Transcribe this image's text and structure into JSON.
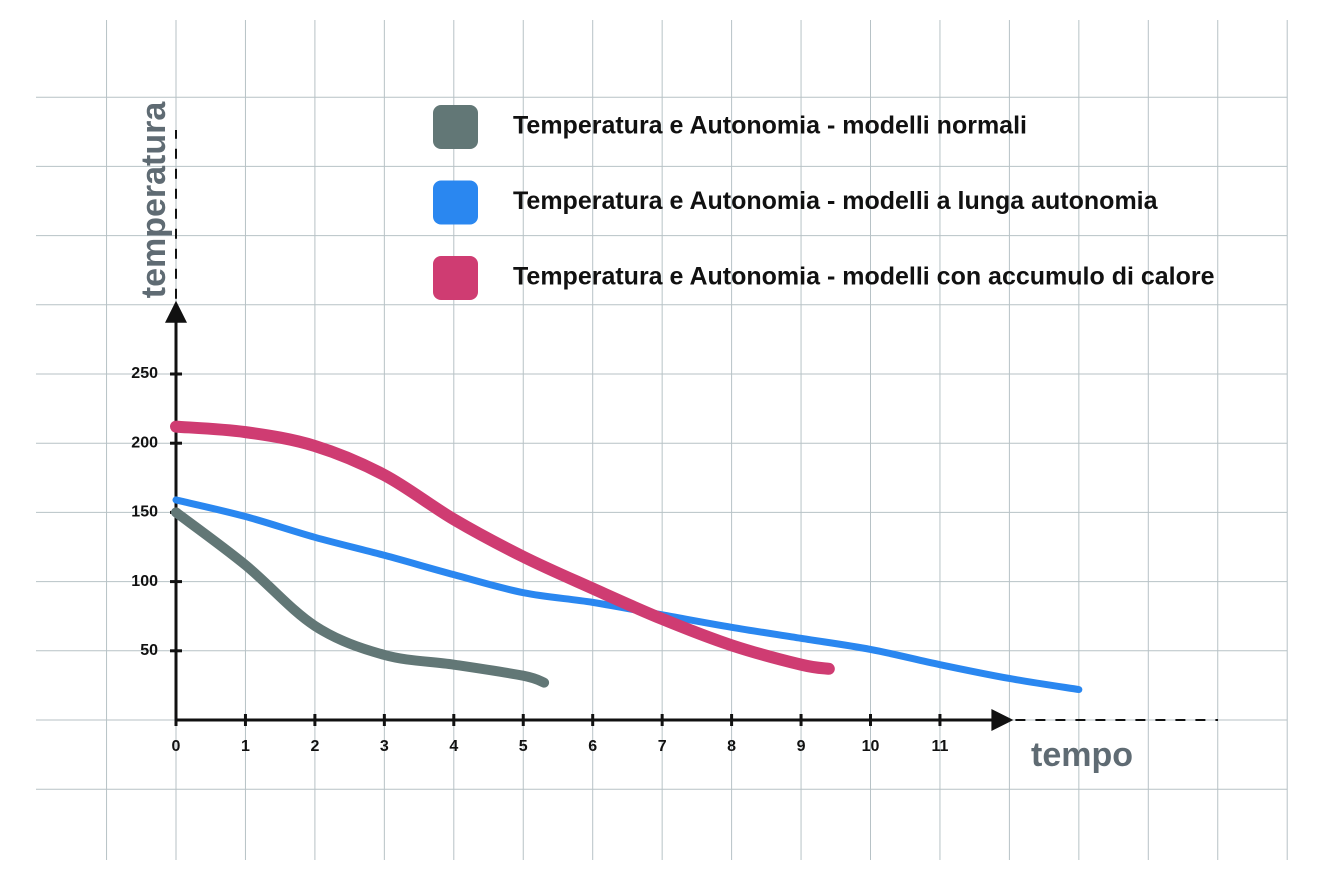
{
  "chart_data": {
    "type": "line",
    "xlabel": "tempo",
    "ylabel": "temperatura",
    "xlim": [
      0,
      12
    ],
    "ylim": [
      0,
      300
    ],
    "xticks": [
      0,
      1,
      2,
      3,
      4,
      5,
      6,
      7,
      8,
      9,
      10,
      11
    ],
    "yticks": [
      50,
      100,
      150,
      200,
      250
    ],
    "grid": true,
    "legend": "top",
    "series": [
      {
        "name": "Temperatura e Autonomia - modelli normali",
        "color": "#627776",
        "x": [
          0,
          1,
          2,
          3,
          4,
          5,
          5.3
        ],
        "values": [
          150,
          112,
          68,
          47,
          40,
          32,
          27
        ]
      },
      {
        "name": "Temperatura e Autonomia - modelli a lunga autonomia",
        "color": "#2a87f0",
        "x": [
          0,
          1,
          2,
          3,
          4,
          5,
          6,
          7,
          8,
          9,
          10,
          11,
          12,
          13
        ],
        "values": [
          159,
          147,
          132,
          119,
          105,
          92,
          85,
          76,
          67,
          59,
          51,
          40,
          30,
          22
        ]
      },
      {
        "name": "Temperatura e Autonomia - modelli con accumulo di calore",
        "color": "#cf3c72",
        "x": [
          0,
          1,
          2,
          3,
          4,
          5,
          6,
          7,
          8,
          9,
          9.4
        ],
        "values": [
          212,
          208,
          198,
          177,
          145,
          118,
          95,
          73,
          54,
          40,
          37
        ]
      }
    ]
  }
}
